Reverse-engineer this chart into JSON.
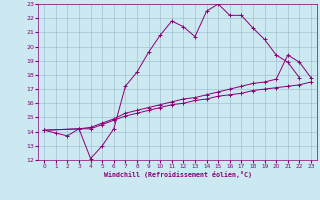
{
  "xlabel": "Windchill (Refroidissement éolien,°C)",
  "bg_color": "#cce8f0",
  "line_color": "#880077",
  "grid_color": "#99bbcc",
  "xlim": [
    -0.5,
    23.5
  ],
  "ylim": [
    12,
    23
  ],
  "xticks": [
    0,
    1,
    2,
    3,
    4,
    5,
    6,
    7,
    8,
    9,
    10,
    11,
    12,
    13,
    14,
    15,
    16,
    17,
    18,
    19,
    20,
    21,
    22,
    23
  ],
  "yticks": [
    12,
    13,
    14,
    15,
    16,
    17,
    18,
    19,
    20,
    21,
    22,
    23
  ],
  "series1_x": [
    0,
    1,
    2,
    3,
    4,
    5,
    6,
    7,
    8,
    9,
    10,
    11,
    12,
    13,
    14,
    15,
    16,
    17,
    18,
    19,
    20,
    21,
    22
  ],
  "series1_y": [
    14.1,
    13.9,
    13.7,
    14.2,
    12.1,
    13.0,
    14.2,
    17.2,
    18.2,
    19.6,
    20.8,
    21.8,
    21.4,
    20.7,
    22.5,
    23.0,
    22.2,
    22.2,
    21.3,
    20.5,
    19.4,
    18.9,
    17.8
  ],
  "series2_x": [
    0,
    3,
    4,
    5,
    6,
    7,
    8,
    9,
    10,
    11,
    12,
    13,
    14,
    15,
    16,
    17,
    18,
    19,
    20,
    21,
    22,
    23
  ],
  "series2_y": [
    14.1,
    14.2,
    14.3,
    14.6,
    14.9,
    15.3,
    15.5,
    15.7,
    15.9,
    16.1,
    16.3,
    16.4,
    16.6,
    16.8,
    17.0,
    17.2,
    17.4,
    17.5,
    17.7,
    19.4,
    18.9,
    17.8
  ],
  "series3_x": [
    0,
    3,
    4,
    5,
    6,
    7,
    8,
    9,
    10,
    11,
    12,
    13,
    14,
    15,
    16,
    17,
    18,
    19,
    20,
    21,
    22,
    23
  ],
  "series3_y": [
    14.1,
    14.2,
    14.2,
    14.5,
    14.8,
    15.1,
    15.3,
    15.5,
    15.7,
    15.9,
    16.0,
    16.2,
    16.3,
    16.5,
    16.6,
    16.7,
    16.9,
    17.0,
    17.1,
    17.2,
    17.3,
    17.5
  ]
}
